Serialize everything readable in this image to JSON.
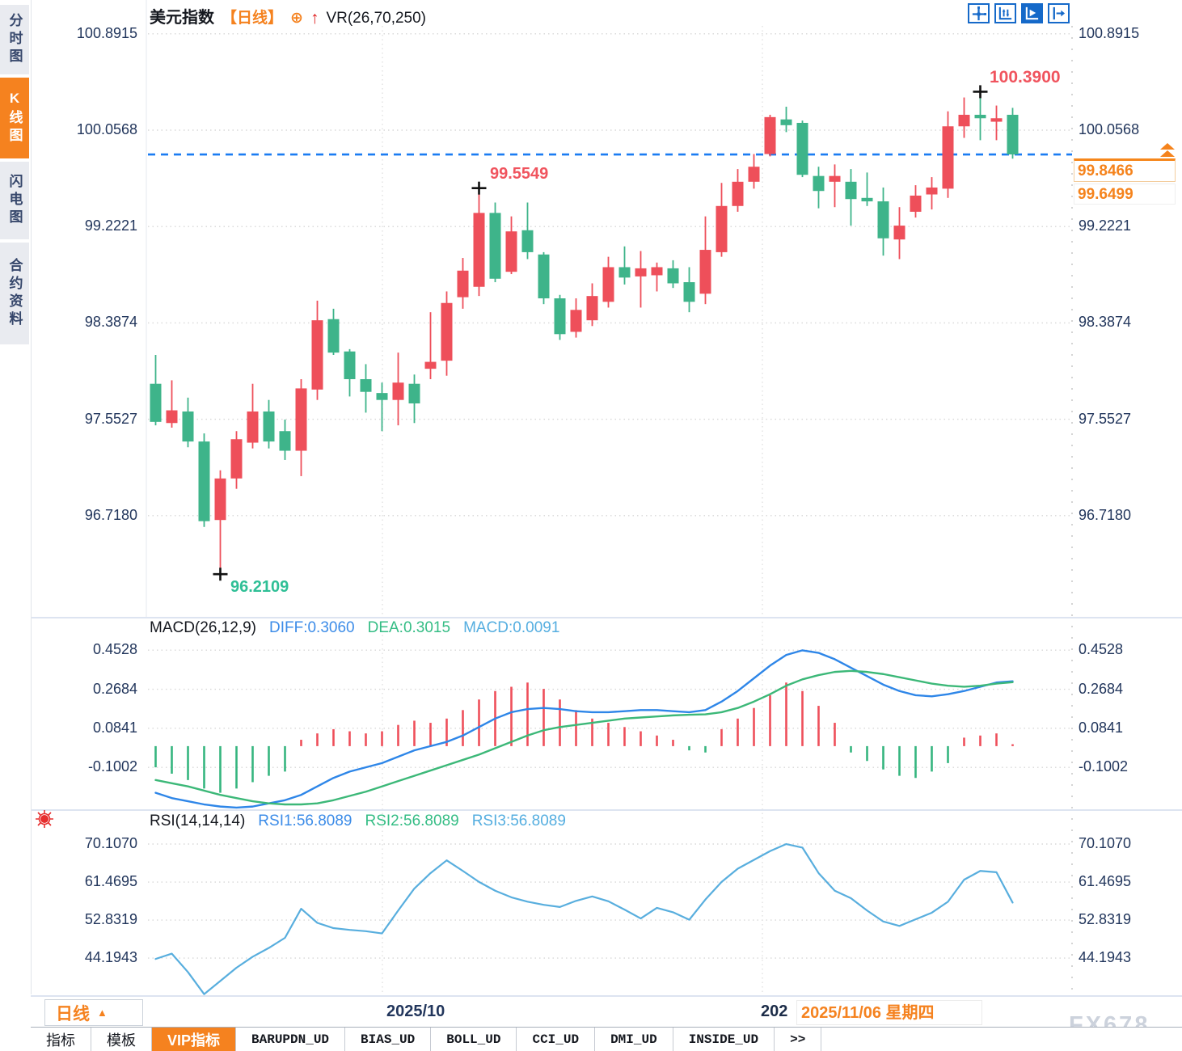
{
  "app": {
    "title_symbol": "美元指数",
    "title_period": "【日线】",
    "title_oplus_icon": "⊕",
    "title_arrow_icon": "↑",
    "title_indicator": "VR(26,70,250)"
  },
  "sidebar": {
    "tabs": [
      {
        "label": "分时图",
        "active": false
      },
      {
        "label": "K线图",
        "active": true
      },
      {
        "label": "闪电图",
        "active": false
      },
      {
        "label": "合约资料",
        "active": false
      }
    ]
  },
  "toolbar": {
    "buttons": [
      {
        "icon": "pan-crosshair-icon",
        "active": false
      },
      {
        "icon": "fit-axis-icon",
        "active": false
      },
      {
        "icon": "auto-follow-icon",
        "active": true
      },
      {
        "icon": "goto-latest-icon",
        "active": false
      }
    ]
  },
  "price_scale": {
    "ticks": [
      "100.8915",
      "100.0568",
      "99.2221",
      "98.3874",
      "97.5527",
      "96.7180"
    ],
    "tick_values": [
      100.8915,
      100.0568,
      99.2221,
      98.3874,
      97.5527,
      96.718
    ]
  },
  "price_tags": {
    "last": "99.8466",
    "last_value": 99.8466,
    "secondary": "99.6499"
  },
  "annotations": {
    "high": {
      "text": "100.3900",
      "value": 100.39
    },
    "swing_high": {
      "text": "99.5549",
      "value": 99.5549
    },
    "low": {
      "text": "96.2109",
      "value": 96.2109
    }
  },
  "macd": {
    "title": "MACD(26,12,9)",
    "diff_label": "DIFF:0.3060",
    "dea_label": "DEA:0.3015",
    "macd_label": "MACD:0.0091",
    "ticks": [
      "0.4528",
      "0.2684",
      "0.0841",
      "-0.1002"
    ],
    "tick_values": [
      0.4528,
      0.2684,
      0.0841,
      -0.1002
    ]
  },
  "rsi": {
    "title": "RSI(14,14,14)",
    "rsi1_label": "RSI1:56.8089",
    "rsi2_label": "RSI2:56.8089",
    "rsi3_label": "RSI3:56.8089",
    "ticks": [
      "70.1070",
      "61.4695",
      "52.8319",
      "44.1943"
    ],
    "tick_values": [
      70.107,
      61.4695,
      52.8319,
      44.1943
    ]
  },
  "xaxis": {
    "label_left": "2025/10",
    "label_right_partial": "202",
    "hover_date": "2025/11/06 星期四"
  },
  "bottom": {
    "period_selector": "日线",
    "period_arrow": "▲",
    "watermark": "FX678",
    "tabs": [
      {
        "label": "指标",
        "active": false,
        "mono": false
      },
      {
        "label": "模板",
        "active": false,
        "mono": false
      },
      {
        "label": "VIP指标",
        "active": true,
        "mono": false
      },
      {
        "label": "BARUPDN_UD",
        "active": false,
        "mono": true
      },
      {
        "label": "BIAS_UD",
        "active": false,
        "mono": true
      },
      {
        "label": "BOLL_UD",
        "active": false,
        "mono": true
      },
      {
        "label": "CCI_UD",
        "active": false,
        "mono": true
      },
      {
        "label": "DMI_UD",
        "active": false,
        "mono": true
      },
      {
        "label": "INSIDE_UD",
        "active": false,
        "mono": true
      },
      {
        "label": ">>",
        "active": false,
        "mono": true
      }
    ]
  },
  "colors": {
    "up": "#ee4f5a",
    "down": "#3eb48a",
    "accent_orange": "#f5821f",
    "diff_blue": "#2e86e8",
    "dea_green": "#3cb878",
    "rsi_line": "#58aede",
    "label_red": "#f0545e",
    "label_green": "#2fbf96",
    "axis_text": "#22365c",
    "dashed_blue": "#1b7cf2",
    "grid": "#d8d8d8",
    "panel_separator": "#dde4f1"
  },
  "chart_data": [
    {
      "type": "candlestick",
      "name": "美元指数 日线 K线",
      "note": "columns o,h,l,c ; red=up green=down (CN convention)",
      "visible_x_labels": [
        "2025/10",
        "2025/11/06 星期四"
      ],
      "ylim": [
        96.2109,
        100.8915
      ],
      "last_close": 99.8466,
      "candles": [
        [
          97.86,
          98.11,
          97.5,
          97.53
        ],
        [
          97.52,
          97.89,
          97.48,
          97.63
        ],
        [
          97.62,
          97.74,
          97.31,
          97.36
        ],
        [
          97.36,
          97.43,
          96.62,
          96.67
        ],
        [
          96.68,
          97.11,
          96.211,
          97.04
        ],
        [
          97.04,
          97.45,
          96.95,
          97.38
        ],
        [
          97.35,
          97.86,
          97.3,
          97.62
        ],
        [
          97.62,
          97.72,
          97.3,
          97.36
        ],
        [
          97.45,
          97.55,
          97.2,
          97.28
        ],
        [
          97.28,
          97.9,
          97.06,
          97.82
        ],
        [
          97.81,
          98.58,
          97.72,
          98.41
        ],
        [
          98.42,
          98.51,
          98.11,
          98.13
        ],
        [
          98.14,
          98.16,
          97.75,
          97.9
        ],
        [
          97.9,
          98.03,
          97.61,
          97.79
        ],
        [
          97.78,
          97.87,
          97.45,
          97.72
        ],
        [
          97.72,
          98.13,
          97.5,
          97.87
        ],
        [
          97.86,
          97.94,
          97.52,
          97.69
        ],
        [
          97.99,
          98.48,
          97.9,
          98.05
        ],
        [
          98.06,
          98.66,
          97.93,
          98.56
        ],
        [
          98.61,
          98.95,
          98.51,
          98.84
        ],
        [
          98.7,
          99.5549,
          98.62,
          99.34
        ],
        [
          99.34,
          99.43,
          98.74,
          98.77
        ],
        [
          98.83,
          99.31,
          98.81,
          99.18
        ],
        [
          99.19,
          99.43,
          98.94,
          99.0
        ],
        [
          98.98,
          99.0,
          98.55,
          98.6
        ],
        [
          98.6,
          98.63,
          98.24,
          98.29
        ],
        [
          98.31,
          98.6,
          98.26,
          98.5
        ],
        [
          98.41,
          98.73,
          98.36,
          98.62
        ],
        [
          98.57,
          98.96,
          98.52,
          98.87
        ],
        [
          98.87,
          99.05,
          98.72,
          98.78
        ],
        [
          98.79,
          99.01,
          98.52,
          98.86
        ],
        [
          98.8,
          98.91,
          98.66,
          98.87
        ],
        [
          98.86,
          98.93,
          98.69,
          98.73
        ],
        [
          98.74,
          98.87,
          98.48,
          98.57
        ],
        [
          98.64,
          99.31,
          98.55,
          99.02
        ],
        [
          99.0,
          99.6,
          98.96,
          99.4
        ],
        [
          99.4,
          99.72,
          99.35,
          99.61
        ],
        [
          99.61,
          99.85,
          99.55,
          99.74
        ],
        [
          99.85,
          100.19,
          99.83,
          100.17
        ],
        [
          100.15,
          100.26,
          100.04,
          100.1
        ],
        [
          100.12,
          100.14,
          99.65,
          99.67
        ],
        [
          99.66,
          99.74,
          99.38,
          99.53
        ],
        [
          99.61,
          99.76,
          99.39,
          99.66
        ],
        [
          99.61,
          99.72,
          99.23,
          99.46
        ],
        [
          99.47,
          99.69,
          99.4,
          99.44
        ],
        [
          99.44,
          99.56,
          98.97,
          99.12
        ],
        [
          99.11,
          99.39,
          98.94,
          99.23
        ],
        [
          99.35,
          99.58,
          99.3,
          99.49
        ],
        [
          99.5,
          99.65,
          99.37,
          99.56
        ],
        [
          99.55,
          100.22,
          99.47,
          100.09
        ],
        [
          100.09,
          100.34,
          99.99,
          100.19
        ],
        [
          100.19,
          100.39,
          99.97,
          100.16
        ],
        [
          100.13,
          100.27,
          99.97,
          100.16
        ],
        [
          100.19,
          100.25,
          99.81,
          99.8466
        ]
      ]
    },
    {
      "type": "bar",
      "name": "MACD histogram",
      "ylim": [
        -0.29,
        0.4981
      ],
      "values": [
        -0.1,
        -0.13,
        -0.16,
        -0.2,
        -0.22,
        -0.2,
        -0.17,
        -0.14,
        -0.12,
        0.03,
        0.06,
        0.08,
        0.07,
        0.06,
        0.07,
        0.1,
        0.12,
        0.11,
        0.13,
        0.17,
        0.22,
        0.26,
        0.28,
        0.3,
        0.27,
        0.22,
        0.17,
        0.13,
        0.11,
        0.09,
        0.07,
        0.05,
        0.03,
        -0.02,
        -0.03,
        0.08,
        0.13,
        0.18,
        0.24,
        0.3,
        0.26,
        0.19,
        0.11,
        -0.03,
        -0.07,
        -0.11,
        -0.14,
        -0.15,
        -0.12,
        -0.08,
        0.04,
        0.05,
        0.06,
        0.0091
      ]
    },
    {
      "type": "line",
      "name": "DIFF",
      "values": [
        -0.22,
        -0.245,
        -0.26,
        -0.275,
        -0.285,
        -0.29,
        -0.285,
        -0.27,
        -0.255,
        -0.23,
        -0.19,
        -0.15,
        -0.12,
        -0.1,
        -0.08,
        -0.05,
        -0.02,
        0.0,
        0.02,
        0.05,
        0.09,
        0.13,
        0.16,
        0.175,
        0.18,
        0.175,
        0.165,
        0.16,
        0.16,
        0.165,
        0.17,
        0.17,
        0.165,
        0.16,
        0.17,
        0.21,
        0.26,
        0.32,
        0.38,
        0.43,
        0.452,
        0.44,
        0.41,
        0.37,
        0.33,
        0.29,
        0.26,
        0.24,
        0.235,
        0.245,
        0.26,
        0.28,
        0.3,
        0.306
      ]
    },
    {
      "type": "line",
      "name": "DEA",
      "values": [
        -0.16,
        -0.175,
        -0.19,
        -0.21,
        -0.23,
        -0.245,
        -0.26,
        -0.27,
        -0.275,
        -0.275,
        -0.27,
        -0.255,
        -0.235,
        -0.215,
        -0.19,
        -0.165,
        -0.14,
        -0.115,
        -0.09,
        -0.065,
        -0.04,
        -0.01,
        0.02,
        0.05,
        0.075,
        0.09,
        0.1,
        0.11,
        0.12,
        0.13,
        0.135,
        0.14,
        0.145,
        0.148,
        0.15,
        0.16,
        0.18,
        0.21,
        0.245,
        0.285,
        0.315,
        0.335,
        0.35,
        0.355,
        0.35,
        0.34,
        0.325,
        0.31,
        0.295,
        0.285,
        0.28,
        0.285,
        0.295,
        0.3015
      ]
    },
    {
      "type": "line",
      "name": "RSI",
      "ylim": [
        34.8,
        72.0
      ],
      "values": [
        44.0,
        45.2,
        41.0,
        36.0,
        39.0,
        42.0,
        44.5,
        46.5,
        48.8,
        55.4,
        52.2,
        51.0,
        50.6,
        50.3,
        49.8,
        55.0,
        60.0,
        63.5,
        66.4,
        64.0,
        61.5,
        59.5,
        58.0,
        57.0,
        56.3,
        55.8,
        57.2,
        58.2,
        57.1,
        55.2,
        53.2,
        55.6,
        54.6,
        52.9,
        57.5,
        61.5,
        64.5,
        66.5,
        68.5,
        70.1,
        69.3,
        63.5,
        59.5,
        57.8,
        55.0,
        52.5,
        51.5,
        53.0,
        54.5,
        57.0,
        62.0,
        64.0,
        63.7,
        56.8
      ]
    }
  ]
}
